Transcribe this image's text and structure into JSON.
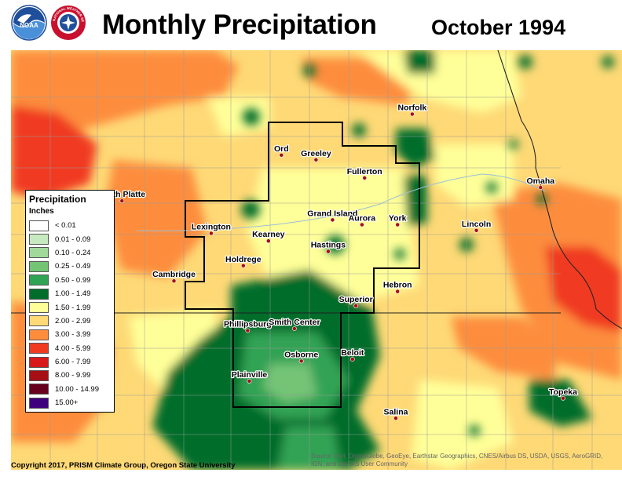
{
  "header": {
    "title": "Monthly Precipitation",
    "date": "October 1994",
    "logos": [
      {
        "icon": "noaa-logo-icon",
        "text": "NOAA"
      },
      {
        "icon": "nws-logo-icon",
        "text": "NATIONAL WEATHER SERVICE"
      }
    ]
  },
  "legend": {
    "title": "Precipitation",
    "units": "Inches",
    "items": [
      {
        "label": "< 0.01",
        "color": "#ffffff"
      },
      {
        "label": "0.01 - 0.09",
        "color": "#c7e9c0"
      },
      {
        "label": "0.10 - 0.24",
        "color": "#a1d99b"
      },
      {
        "label": "0.25 - 0.49",
        "color": "#74c476"
      },
      {
        "label": "0.50 - 0.99",
        "color": "#31a354"
      },
      {
        "label": "1.00 - 1.49",
        "color": "#006d2c"
      },
      {
        "label": "1.50 - 1.99",
        "color": "#ffff99"
      },
      {
        "label": "2.00 - 2.99",
        "color": "#fed976"
      },
      {
        "label": "3.00 - 3.99",
        "color": "#fd8d3c"
      },
      {
        "label": "4.00 - 5.99",
        "color": "#f03b20"
      },
      {
        "label": "6.00 - 7.99",
        "color": "#d7191c"
      },
      {
        "label": "8.00 - 9.99",
        "color": "#a50f15"
      },
      {
        "label": "10.00 - 14.99",
        "color": "#67001f"
      },
      {
        "label": "15.00+",
        "color": "#3f007d"
      }
    ]
  },
  "cities": [
    {
      "name": "Norfolk",
      "lon": -97.42,
      "lat": 42.03
    },
    {
      "name": "Ord",
      "lon": -98.93,
      "lat": 41.6
    },
    {
      "name": "Greeley",
      "lon": -98.53,
      "lat": 41.55
    },
    {
      "name": "Fullerton",
      "lon": -97.97,
      "lat": 41.36
    },
    {
      "name": "Omaha",
      "lon": -95.94,
      "lat": 41.26
    },
    {
      "name": "North Platte",
      "lon": -100.77,
      "lat": 41.12
    },
    {
      "name": "Grand Island",
      "lon": -98.34,
      "lat": 40.92
    },
    {
      "name": "Aurora",
      "lon": -98.0,
      "lat": 40.87
    },
    {
      "name": "York",
      "lon": -97.59,
      "lat": 40.87
    },
    {
      "name": "Lincoln",
      "lon": -96.68,
      "lat": 40.81
    },
    {
      "name": "Lexington",
      "lon": -99.74,
      "lat": 40.78
    },
    {
      "name": "Kearney",
      "lon": -99.08,
      "lat": 40.7
    },
    {
      "name": "Hastings",
      "lon": -98.39,
      "lat": 40.59
    },
    {
      "name": "Holdrege",
      "lon": -99.37,
      "lat": 40.44
    },
    {
      "name": "Cambridge",
      "lon": -100.17,
      "lat": 40.28
    },
    {
      "name": "Hebron",
      "lon": -97.59,
      "lat": 40.17
    },
    {
      "name": "Superior",
      "lon": -98.07,
      "lat": 40.02
    },
    {
      "name": "Phillipsburg",
      "lon": -99.32,
      "lat": 39.76
    },
    {
      "name": "Smith Center",
      "lon": -98.78,
      "lat": 39.78
    },
    {
      "name": "Beloit",
      "lon": -98.11,
      "lat": 39.46
    },
    {
      "name": "Osborne",
      "lon": -98.7,
      "lat": 39.44
    },
    {
      "name": "Plainville",
      "lon": -99.3,
      "lat": 39.23
    },
    {
      "name": "Topeka",
      "lon": -95.68,
      "lat": 39.05
    },
    {
      "name": "Salina",
      "lon": -97.61,
      "lat": 38.84
    }
  ],
  "credit": "Copyright 2017, PRISM Climate Group, Oregon State University",
  "attribution": "Source: Esri, DigitalGlobe, GeoEye, Earthstar Geographics, CNES/Airbus DS, USDA, USGS, AeroGRID, IGN, and the GIS User Community"
}
